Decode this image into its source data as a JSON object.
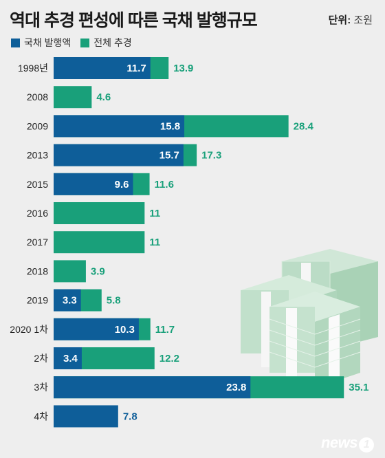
{
  "header": {
    "title": "역대 추경 편성에 따른 국채 발행규모",
    "unit_label": "단위:",
    "unit_value": "조원"
  },
  "legend": [
    {
      "label": "국채 발행액",
      "color": "#0e5e99"
    },
    {
      "label": "전체 추경",
      "color": "#19a07a"
    }
  ],
  "chart_data": {
    "type": "bar",
    "orientation": "horizontal",
    "stacked_overlay": true,
    "title": "역대 추경 편성에 따른 국채 발행규모",
    "unit": "조원",
    "categories": [
      "1998년",
      "2008",
      "2009",
      "2013",
      "2015",
      "2016",
      "2017",
      "2018",
      "2019",
      "2020 1차",
      "2차",
      "3차",
      "4차"
    ],
    "series": [
      {
        "name": "국채 발행액",
        "color": "#0e5e99",
        "values": [
          11.7,
          null,
          15.8,
          15.7,
          9.6,
          null,
          null,
          null,
          3.3,
          10.3,
          3.4,
          23.8,
          7.8
        ]
      },
      {
        "name": "전체 추경",
        "color": "#19a07a",
        "values": [
          13.9,
          4.6,
          28.4,
          17.3,
          11.6,
          11,
          11,
          3.9,
          5.8,
          11.7,
          12.2,
          35.1,
          null
        ]
      }
    ],
    "labels_total": [
      "13.9",
      "4.6",
      "28.4",
      "17.3",
      "11.6",
      "11",
      "11",
      "3.9",
      "5.8",
      "11.7",
      "12.2",
      "35.1",
      "7.8"
    ],
    "labels_bond": [
      "11.7",
      "",
      "15.8",
      "15.7",
      "9.6",
      "",
      "",
      "",
      "3.3",
      "10.3",
      "3.4",
      "23.8",
      ""
    ],
    "xlim": [
      0,
      36
    ],
    "grid": false,
    "legend_position": "top-left"
  },
  "logo": {
    "text": "news",
    "mark": "1"
  }
}
